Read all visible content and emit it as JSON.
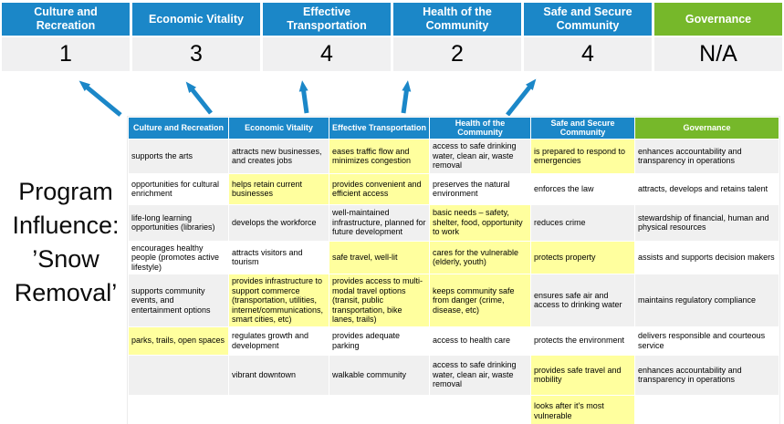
{
  "colors": {
    "blue": "#1b87c8",
    "green": "#76b82a",
    "highlight": "#ffff9e",
    "row_alt": "#f0f0f0",
    "score_bg": "#f0f0f1"
  },
  "program_label": "Program Influence: ’Snow Removal’",
  "summary": {
    "pillars": [
      {
        "label": "Culture and Recreation",
        "score": "1",
        "header_color": "blue"
      },
      {
        "label": "Economic Vitality",
        "score": "3",
        "header_color": "blue"
      },
      {
        "label": "Effective Transportation",
        "score": "4",
        "header_color": "blue"
      },
      {
        "label": "Health of the Community",
        "score": "2",
        "header_color": "blue"
      },
      {
        "label": "Safe and Secure Community",
        "score": "4",
        "header_color": "blue"
      },
      {
        "label": "Governance",
        "score": "N/A",
        "header_color": "green"
      }
    ]
  },
  "arrows": [
    "up-left",
    "up-left",
    "up",
    "up",
    "up-right"
  ],
  "table": {
    "headers": [
      {
        "label": "Culture and Recreation",
        "color": "blue"
      },
      {
        "label": "Economic Vitality",
        "color": "blue"
      },
      {
        "label": "Effective Transportation",
        "color": "blue"
      },
      {
        "label": "Health of the Community",
        "color": "blue"
      },
      {
        "label": "Safe and Secure Community",
        "color": "blue"
      },
      {
        "label": "Governance",
        "color": "green"
      }
    ],
    "rows": [
      [
        {
          "text": "supports the arts",
          "highlight": false
        },
        {
          "text": "attracts new businesses, and creates jobs",
          "highlight": false
        },
        {
          "text": "eases traffic flow and minimizes congestion",
          "highlight": true
        },
        {
          "text": "access to safe drinking water, clean air, waste removal",
          "highlight": false
        },
        {
          "text": "is prepared to respond to emergencies",
          "highlight": true
        },
        {
          "text": "enhances accountability and transparency in operations",
          "highlight": false
        }
      ],
      [
        {
          "text": "opportunities for cultural enrichment",
          "highlight": false
        },
        {
          "text": "helps retain current businesses",
          "highlight": true
        },
        {
          "text": "provides convenient and efficient access",
          "highlight": true
        },
        {
          "text": "preserves the natural environment",
          "highlight": false
        },
        {
          "text": "enforces the law",
          "highlight": false
        },
        {
          "text": "attracts, develops and retains talent",
          "highlight": false
        }
      ],
      [
        {
          "text": "life-long learning opportunities (libraries)",
          "highlight": false
        },
        {
          "text": "develops the workforce",
          "highlight": false
        },
        {
          "text": "well-maintained infrastructure, planned for future development",
          "highlight": false
        },
        {
          "text": "basic needs – safety, shelter, food, opportunity to work",
          "highlight": true
        },
        {
          "text": "reduces crime",
          "highlight": false
        },
        {
          "text": "stewardship of financial, human and physical resources",
          "highlight": false
        }
      ],
      [
        {
          "text": "encourages healthy people (promotes active lifestyle)",
          "highlight": false
        },
        {
          "text": "attracts visitors and tourism",
          "highlight": false
        },
        {
          "text": "safe travel, well-lit",
          "highlight": true
        },
        {
          "text": "cares for the vulnerable (elderly, youth)",
          "highlight": true
        },
        {
          "text": "protects property",
          "highlight": true
        },
        {
          "text": "assists and supports decision makers",
          "highlight": false
        }
      ],
      [
        {
          "text": "supports community events, and entertainment options",
          "highlight": false
        },
        {
          "text": "provides infrastructure to support commerce (transportation, utilities, internet/communications, smart cities, etc)",
          "highlight": true
        },
        {
          "text": "provides access to multi-modal travel options (transit, public transportation, bike lanes, trails)",
          "highlight": true
        },
        {
          "text": "keeps community safe from danger (crime, disease, etc)",
          "highlight": true
        },
        {
          "text": "ensures safe air and access to drinking water",
          "highlight": false
        },
        {
          "text": "maintains regulatory compliance",
          "highlight": false
        }
      ],
      [
        {
          "text": "parks, trails, open spaces",
          "highlight": true
        },
        {
          "text": "regulates growth and development",
          "highlight": false
        },
        {
          "text": "provides adequate parking",
          "highlight": false
        },
        {
          "text": "access to health care",
          "highlight": false
        },
        {
          "text": "protects the environment",
          "highlight": false
        },
        {
          "text": "delivers responsible and courteous service",
          "highlight": false
        }
      ],
      [
        {
          "text": "",
          "highlight": false
        },
        {
          "text": "vibrant downtown",
          "highlight": false
        },
        {
          "text": "walkable community",
          "highlight": false
        },
        {
          "text": "access to safe drinking water, clean air, waste removal",
          "highlight": false
        },
        {
          "text": "provides safe travel and mobility",
          "highlight": true
        },
        {
          "text": "enhances accountability and transparency in operations",
          "highlight": false
        }
      ],
      [
        {
          "text": "",
          "highlight": false
        },
        {
          "text": "",
          "highlight": false
        },
        {
          "text": "",
          "highlight": false
        },
        {
          "text": "",
          "highlight": false
        },
        {
          "text": "looks after it's most vulnerable",
          "highlight": true
        },
        {
          "text": "",
          "highlight": false
        }
      ]
    ]
  }
}
